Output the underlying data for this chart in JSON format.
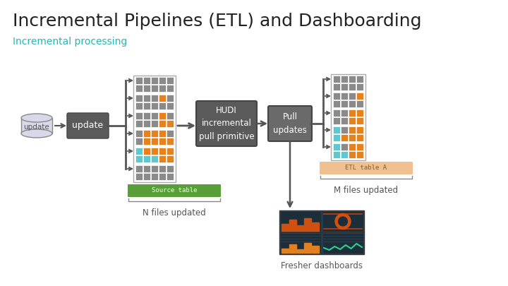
{
  "title": "Incremental Pipelines (ETL) and Dashboarding",
  "subtitle": "Incremental processing",
  "title_color": "#222222",
  "subtitle_color": "#2ab5b5",
  "bg_color": "#ffffff",
  "update_cylinder_label": "update",
  "update_box_label": "update",
  "hudi_box_label": "HUDI\nincremental\npull primitive",
  "pull_box_label": "Pull\nupdates",
  "source_table_label": "Source table",
  "etl_table_label": "ETL table A",
  "n_files_label": "N files updated",
  "m_files_label": "M files updated",
  "fresher_label": "Fresher dashboards",
  "gray_dark": "#555555",
  "gray_medium": "#888888",
  "gray_box": "#5a5a5a",
  "gray_box2": "#6a6a6a",
  "orange": "#e6821e",
  "blue": "#5bc8d2",
  "gray_tile": "#8a8a8a",
  "gray_tile_dark": "#666666",
  "green_label": "#5a9e3a",
  "peach_label": "#f0c090",
  "source_table_text": "#2a6a0a",
  "etl_table_text": "#a06020",
  "arrow_color": "#555555",
  "left_row_patterns": [
    [
      "g",
      "g",
      "g",
      "g",
      "g"
    ],
    [
      "g",
      "g",
      "g",
      "g",
      "g"
    ],
    [
      "g",
      "g",
      "g",
      "o",
      "g"
    ],
    [
      "g",
      "g",
      "g",
      "g",
      "g"
    ],
    [
      "g",
      "g",
      "g",
      "o",
      "g"
    ],
    [
      "g",
      "g",
      "g",
      "o",
      "o"
    ],
    [
      "g",
      "o",
      "o",
      "o",
      "g"
    ],
    [
      "g",
      "o",
      "o",
      "o",
      "o"
    ],
    [
      "b",
      "o",
      "o",
      "o",
      "o"
    ],
    [
      "b",
      "b",
      "b",
      "o",
      "o"
    ]
  ],
  "right_row_patterns": [
    [
      "g",
      "g",
      "g",
      "g"
    ],
    [
      "g",
      "g",
      "g",
      "g"
    ],
    [
      "g",
      "g",
      "g",
      "o"
    ],
    [
      "g",
      "g",
      "g",
      "g"
    ],
    [
      "g",
      "g",
      "o",
      "o"
    ],
    [
      "g",
      "g",
      "o",
      "o"
    ],
    [
      "b",
      "g",
      "o",
      "o"
    ],
    [
      "b",
      "o",
      "o",
      "o"
    ],
    [
      "b",
      "g",
      "o",
      "o"
    ],
    [
      "b",
      "b",
      "o",
      "o"
    ]
  ]
}
